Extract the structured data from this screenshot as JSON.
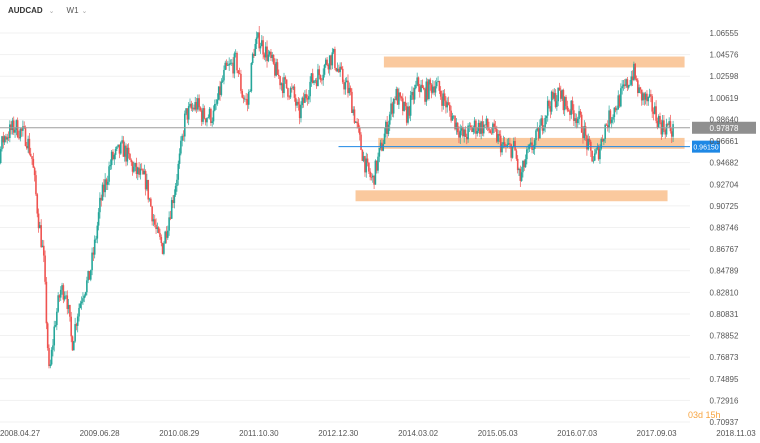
{
  "toolbar": {
    "symbol": "AUDCAD",
    "symbol_suffix": "",
    "symbol_menu_icon": "chevron-down-icon",
    "timeframe": "W1",
    "timeframe_menu_icon": "chevron-down-icon"
  },
  "countdown": "03d 15h",
  "colors": {
    "up": "#26a69a",
    "down": "#ef5350",
    "zone": "#f9c08d",
    "current_line": "#9e9e9e",
    "current_label_bg": "#8f8f8f",
    "ref_line": "#1e88e5",
    "ref_label_bg": "#1e88e5",
    "countdown": "#f7a440",
    "axis_text": "#555555",
    "grid": "#f1f1f1"
  },
  "chart_data": {
    "type": "candlestick",
    "symbol": "AUDCAD",
    "timeframe": "W1",
    "x_ticks": [
      "2008.04.27",
      "2009.06.28",
      "2010.08.29",
      "2011.10.30",
      "2012.12.30",
      "2014.03.02",
      "2015.05.03",
      "2016.07.03",
      "2017.09.03",
      "2018.11.03"
    ],
    "y_ticks": [
      "1.06555",
      "1.04576",
      "1.02598",
      "1.00619",
      "0.98640",
      "0.96661",
      "0.94682",
      "0.92704",
      "0.90725",
      "0.88746",
      "0.86767",
      "0.84789",
      "0.82810",
      "0.80831",
      "0.78852",
      "0.76873",
      "0.74895",
      "0.72916",
      "0.70937"
    ],
    "ylim": [
      0.70937,
      1.06555
    ],
    "current_price": "0.97878",
    "current_price_value": 0.97878,
    "reference_line": "0.96150",
    "reference_line_value": 0.9615,
    "zones": [
      {
        "from_date": "2013.09",
        "to_date": "2018.02",
        "low": 1.034,
        "high": 1.044
      },
      {
        "from_date": "2013.08",
        "to_date": "2018.02",
        "low": 0.9595,
        "high": 0.9695
      },
      {
        "from_date": "2013.04",
        "to_date": "2017.11",
        "low": 0.9115,
        "high": 0.9215
      }
    ],
    "anchors": [
      [
        "2007.10",
        0.96
      ],
      [
        "2007.12",
        0.93
      ],
      [
        "2008.02",
        0.97
      ],
      [
        "2008.04",
        0.98
      ],
      [
        "2008.06",
        0.97
      ],
      [
        "2008.07",
        0.95
      ],
      [
        "2008.08",
        0.9
      ],
      [
        "2008.09",
        0.86
      ],
      [
        "2008.10",
        0.75
      ],
      [
        "2008.11",
        0.8
      ],
      [
        "2008.12",
        0.83
      ],
      [
        "2009.01",
        0.83
      ],
      [
        "2009.02",
        0.78
      ],
      [
        "2009.03",
        0.81
      ],
      [
        "2009.04",
        0.83
      ],
      [
        "2009.05",
        0.84
      ],
      [
        "2009.06",
        0.87
      ],
      [
        "2009.07",
        0.91
      ],
      [
        "2009.09",
        0.95
      ],
      [
        "2009.11",
        0.96
      ],
      [
        "2010.01",
        0.94
      ],
      [
        "2010.03",
        0.93
      ],
      [
        "2010.05",
        0.88
      ],
      [
        "2010.06",
        0.87
      ],
      [
        "2010.08",
        0.92
      ],
      [
        "2010.09",
        0.95
      ],
      [
        "2010.10",
        0.99
      ],
      [
        "2010.12",
        1.0
      ],
      [
        "2011.01",
        0.99
      ],
      [
        "2011.03",
        0.99
      ],
      [
        "2011.05",
        1.03
      ],
      [
        "2011.07",
        1.04
      ],
      [
        "2011.08",
        1.01
      ],
      [
        "2011.09",
        1.0
      ],
      [
        "2011.10",
        1.05
      ],
      [
        "2011.11",
        1.06
      ],
      [
        "2012.01",
        1.04
      ],
      [
        "2012.03",
        1.02
      ],
      [
        "2012.05",
        1.01
      ],
      [
        "2012.06",
        0.99
      ],
      [
        "2012.08",
        1.02
      ],
      [
        "2012.10",
        1.03
      ],
      [
        "2012.11",
        1.04
      ],
      [
        "2012.12",
        1.045
      ],
      [
        "2013.01",
        1.03
      ],
      [
        "2013.03",
        1.01
      ],
      [
        "2013.05",
        0.96
      ],
      [
        "2013.06",
        0.94
      ],
      [
        "2013.07",
        0.93
      ],
      [
        "2013.09",
        0.97
      ],
      [
        "2013.10",
        0.99
      ],
      [
        "2013.11",
        1.01
      ],
      [
        "2013.12",
        1.0
      ],
      [
        "2014.01",
        0.99
      ],
      [
        "2014.03",
        1.02
      ],
      [
        "2014.04",
        1.01
      ],
      [
        "2014.06",
        1.02
      ],
      [
        "2014.08",
        1.0
      ],
      [
        "2014.10",
        0.98
      ],
      [
        "2014.11",
        0.97
      ],
      [
        "2015.01",
        0.98
      ],
      [
        "2015.03",
        0.98
      ],
      [
        "2015.05",
        0.97
      ],
      [
        "2015.06",
        0.96
      ],
      [
        "2015.08",
        0.96
      ],
      [
        "2015.09",
        0.93
      ],
      [
        "2015.10",
        0.95
      ],
      [
        "2015.12",
        0.97
      ],
      [
        "2016.02",
        1.0
      ],
      [
        "2016.04",
        1.01
      ],
      [
        "2016.05",
        1.0
      ],
      [
        "2016.07",
        0.99
      ],
      [
        "2016.08",
        0.98
      ],
      [
        "2016.09",
        0.96
      ],
      [
        "2016.10",
        0.95
      ],
      [
        "2016.11",
        0.96
      ],
      [
        "2016.12",
        0.98
      ],
      [
        "2017.02",
        1.0
      ],
      [
        "2017.04",
        1.02
      ],
      [
        "2017.05",
        1.03
      ],
      [
        "2017.06",
        1.01
      ],
      [
        "2017.08",
        1.0
      ],
      [
        "2017.10",
        0.98
      ],
      [
        "2017.11",
        0.98
      ],
      [
        "2017.12",
        0.975
      ]
    ]
  }
}
